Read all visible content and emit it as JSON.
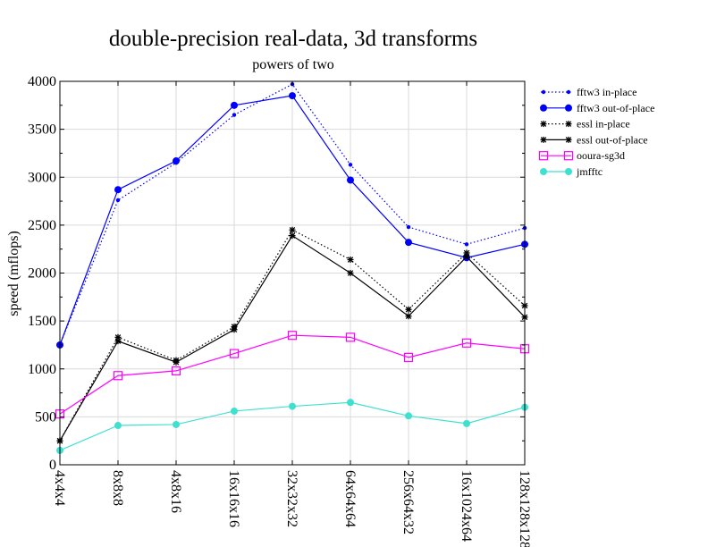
{
  "chart_data": {
    "type": "line",
    "title": "double-precision real-data, 3d transforms",
    "subtitle": "powers of two",
    "xlabel": "",
    "ylabel": "speed (mflops)",
    "ylim": [
      0,
      4000
    ],
    "yticks": [
      "0",
      "500",
      "1000",
      "1500",
      "2000",
      "2500",
      "3000",
      "3500",
      "4000"
    ],
    "grid": true,
    "legend_position": "right",
    "categories": [
      "4x4x4",
      "8x8x8",
      "4x8x16",
      "16x16x16",
      "32x32x32",
      "64x64x64",
      "256x64x32",
      "16x1024x64",
      "128x128x128"
    ],
    "series": [
      {
        "name": "fftw3 in-place",
        "color": "#0000ff",
        "dash": "dotted",
        "marker": "small-dot",
        "values": [
          1250,
          2760,
          3150,
          3650,
          3970,
          3130,
          2480,
          2300,
          2470
        ]
      },
      {
        "name": "fftw3 out-of-place",
        "color": "#0000ff",
        "dash": "solid",
        "marker": "dot",
        "values": [
          1250,
          2870,
          3170,
          3750,
          3850,
          2970,
          2320,
          2160,
          2300
        ]
      },
      {
        "name": "essl in-place",
        "color": "#000000",
        "dash": "dotted",
        "marker": "star",
        "values": [
          250,
          1330,
          1090,
          1440,
          2450,
          2140,
          1620,
          2210,
          1660
        ]
      },
      {
        "name": "essl out-of-place",
        "color": "#000000",
        "dash": "solid",
        "marker": "star",
        "values": [
          250,
          1290,
          1070,
          1410,
          2390,
          2000,
          1550,
          2170,
          1540
        ]
      },
      {
        "name": "ooura-sg3d",
        "color": "#ff00ff",
        "dash": "solid",
        "marker": "open-square",
        "values": [
          530,
          930,
          980,
          1160,
          1350,
          1330,
          1120,
          1270,
          1210
        ]
      },
      {
        "name": "jmfftc",
        "color": "#40e0d0",
        "dash": "solid",
        "marker": "dot",
        "values": [
          150,
          410,
          420,
          560,
          610,
          650,
          510,
          430,
          600
        ]
      }
    ]
  }
}
